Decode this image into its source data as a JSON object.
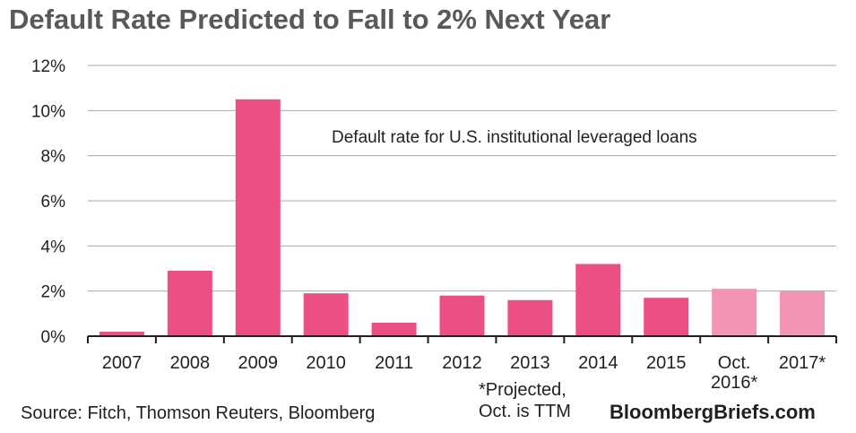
{
  "chart_data": {
    "type": "bar",
    "title": "Default Rate Predicted to Fall to 2% Next Year",
    "annotation": "Default rate for U.S. institutional leveraged loans",
    "categories": [
      [
        "2007"
      ],
      [
        "2008"
      ],
      [
        "2009"
      ],
      [
        "2010"
      ],
      [
        "2011"
      ],
      [
        "2012"
      ],
      [
        "2013"
      ],
      [
        "2014"
      ],
      [
        "2015"
      ],
      [
        "Oct.",
        "2016*"
      ],
      [
        "2017*"
      ]
    ],
    "values": [
      0.2,
      2.9,
      10.5,
      1.9,
      0.6,
      1.8,
      1.6,
      3.2,
      1.7,
      2.1,
      2.0
    ],
    "projected": [
      false,
      false,
      false,
      false,
      false,
      false,
      false,
      false,
      false,
      true,
      true
    ],
    "colors": {
      "actual": "#ec4f82",
      "projected": "#f294b4",
      "grid": "#a7a9ac",
      "axis": "#231f20"
    },
    "ylim": [
      0,
      12
    ],
    "yticks": [
      0,
      2,
      4,
      6,
      8,
      10,
      12
    ],
    "ytick_labels": [
      "0%",
      "2%",
      "4%",
      "6%",
      "8%",
      "10%",
      "12%"
    ],
    "grid": true,
    "footnote": [
      "*Projected,",
      "Oct. is TTM"
    ],
    "source": "Source: Fitch, Thomson Reuters, Bloomberg",
    "brand": "BloombergBriefs.com"
  }
}
